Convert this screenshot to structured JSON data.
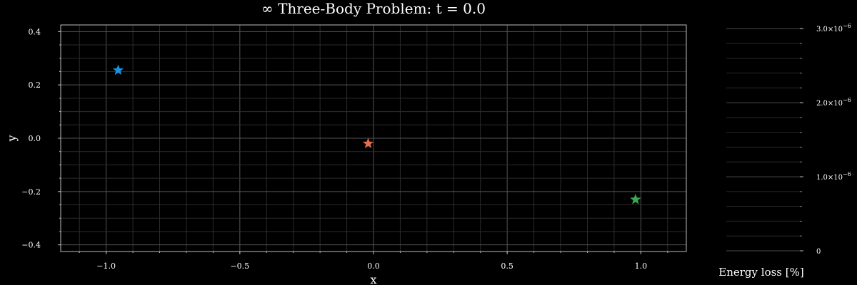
{
  "chart_data": [
    {
      "type": "scatter",
      "title": "∞ Three-Body Problem: t = 0.0",
      "xlabel": "x",
      "ylabel": "y",
      "xlim": [
        -1.17,
        1.17
      ],
      "ylim": [
        -0.425,
        0.425
      ],
      "grid": true,
      "xticks": [
        -1.0,
        -0.5,
        0.0,
        0.5,
        1.0
      ],
      "xtick_labels": [
        "−1.0",
        "−0.5",
        "0.0",
        "0.5",
        "1.0"
      ],
      "yticks": [
        0.4,
        0.2,
        0.0,
        -0.2,
        -0.4
      ],
      "ytick_labels": [
        "0.4",
        "0.2",
        "0.0",
        "−0.2",
        "−0.4"
      ],
      "marker": "star",
      "series": [
        {
          "x": [
            -0.955
          ],
          "y": [
            0.255
          ],
          "color": "#1696e6"
        },
        {
          "x": [
            -0.02
          ],
          "y": [
            -0.02
          ],
          "color": "#e36d4f"
        },
        {
          "x": [
            0.98
          ],
          "y": [
            -0.23
          ],
          "color": "#38a851"
        }
      ]
    },
    {
      "type": "line",
      "xlabel": "Energy loss [%]",
      "ylim": [
        0,
        3.05e-06
      ],
      "grid": true,
      "yticks": [
        0,
        1e-06,
        2e-06,
        3e-06
      ],
      "ytick_labels": [
        {
          "base": "0",
          "exp": ""
        },
        {
          "base": "1.0×10",
          "exp": "−6"
        },
        {
          "base": "2.0×10",
          "exp": "−6"
        },
        {
          "base": "3.0×10",
          "exp": "−6"
        }
      ],
      "series": []
    }
  ]
}
